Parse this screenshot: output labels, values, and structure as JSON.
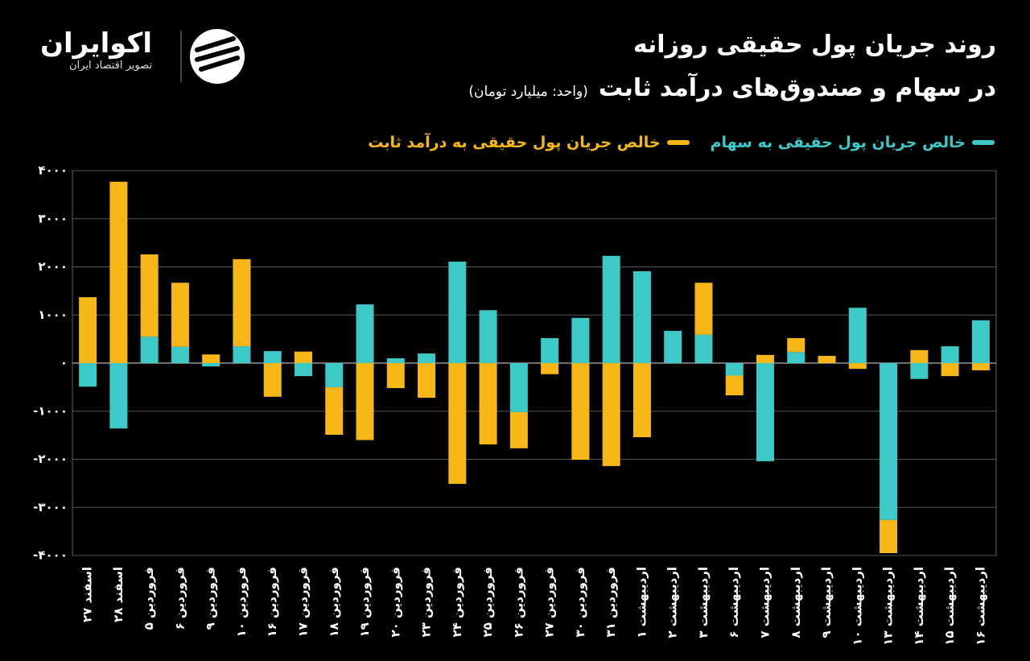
{
  "logo": {
    "name": "اکوایران",
    "tagline": "تصویر اقتصاد ایران"
  },
  "chart_data": {
    "type": "bar",
    "title": "روند جریان پول حقیقی روزانه",
    "subtitle": "در سهام و صندوق‌های درآمد ثابت",
    "unit": "(واحد: میلیارد تومان)",
    "stacked": true,
    "categories": [
      "اسفند ۲۷",
      "اسفند ۲۸",
      "فروردین ۵",
      "فروردین ۶",
      "فروردین ۹",
      "فروردین ۱۰",
      "فروردین ۱۶",
      "فروردین ۱۷",
      "فروردین ۱۸",
      "فروردین ۱۹",
      "فروردین ۲۰",
      "فروردین ۲۳",
      "فروردین ۲۴",
      "فروردین ۲۵",
      "فروردین ۲۶",
      "فروردین ۲۷",
      "فروردین ۳۰",
      "فروردین ۳۱",
      "اردیبهشت ۱",
      "اردیبهشت ۲",
      "اردیبهشت ۳",
      "اردیبهشت ۶",
      "اردیبهشت ۷",
      "اردیبهشت ۸",
      "اردیبهشت ۹",
      "اردیبهشت ۱۰",
      "اردیبهشت ۱۳",
      "اردیبهشت ۱۴",
      "اردیبهشت ۱۵",
      "اردیبهشت ۱۶"
    ],
    "series": [
      {
        "name": "خالص جریان پول حقیقی به سهام",
        "color": "#3ec9c9",
        "values": [
          -490,
          -1360,
          550,
          340,
          -70,
          350,
          250,
          -270,
          -500,
          1220,
          100,
          200,
          2110,
          1100,
          -1020,
          520,
          940,
          2230,
          1910,
          670,
          590,
          -260,
          -2040,
          230,
          0,
          1150,
          -3260,
          -330,
          350,
          890
        ]
      },
      {
        "name": "خالص جریان پول حقیقی به درآمد ثابت",
        "color": "#f7b817",
        "values": [
          1370,
          3770,
          1710,
          1330,
          180,
          1810,
          -700,
          240,
          -990,
          -1600,
          -520,
          -720,
          -2510,
          -1690,
          -750,
          -230,
          -2010,
          -2140,
          -1540,
          0,
          1080,
          -410,
          170,
          290,
          150,
          -120,
          -690,
          270,
          -270,
          -150
        ]
      }
    ],
    "ylim": [
      -4000,
      4000
    ],
    "yticks": [
      {
        "value": 4000,
        "label": "۴۰۰۰"
      },
      {
        "value": 3000,
        "label": "۳۰۰۰"
      },
      {
        "value": 2000,
        "label": "۲۰۰۰"
      },
      {
        "value": 1000,
        "label": "۱۰۰۰"
      },
      {
        "value": 0,
        "label": "۰"
      },
      {
        "value": -1000,
        "label": "-۱۰۰۰"
      },
      {
        "value": -2000,
        "label": "-۲۰۰۰"
      },
      {
        "value": -3000,
        "label": "-۳۰۰۰"
      },
      {
        "value": -4000,
        "label": "-۴۰۰۰"
      }
    ],
    "grid": true
  }
}
